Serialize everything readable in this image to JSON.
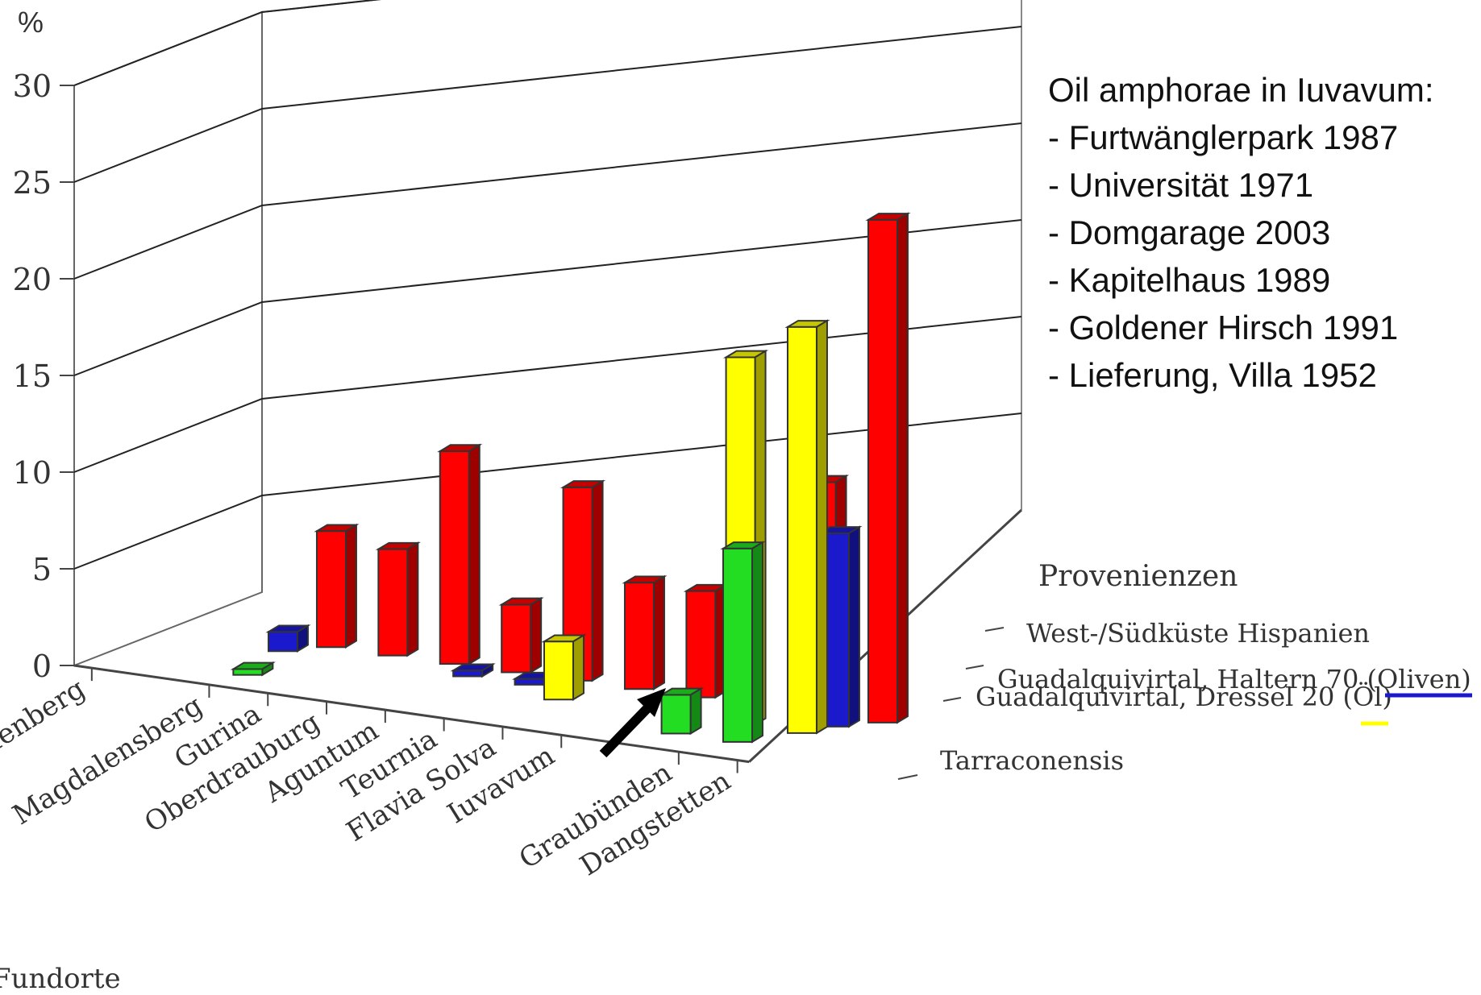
{
  "chart_data": {
    "type": "bar",
    "y_unit_label": "%",
    "xlabel": "Fundorte",
    "series_axis_label": "Provenienzen",
    "ylim": [
      0,
      30
    ],
    "yticks": [
      0,
      5,
      10,
      15,
      20,
      25,
      30
    ],
    "categories": [
      "Magdalensberg",
      "Gurina",
      "Oberdrauburg",
      "Aguntum",
      "Teurnia",
      "Flavia Solva",
      "Iuvavum",
      "Graubünden",
      "Dangstetten"
    ],
    "x_tick_labels": [
      "Lauenberg",
      "Magdalensberg",
      "Gurina",
      "Oberdrauburg",
      "Aguntum",
      "Teurnia",
      "Flavia Solva",
      "Iuvavum",
      "Graubünden",
      "Dangstetten"
    ],
    "series": [
      {
        "name": "West-/Südküste Hispanien",
        "color": "#ff0000",
        "values": [
          6,
          5.5,
          11,
          3.5,
          10,
          5.5,
          5.5,
          12,
          26
        ]
      },
      {
        "name": "Guadalquivirtal, Haltern 70 (Oliven)",
        "color": "#1a1acc",
        "values": [
          1,
          0,
          0,
          0.3,
          0.3,
          0,
          0,
          0,
          10
        ]
      },
      {
        "name": "Guadalquivirtal, Dressel 20 (Öl)",
        "color": "#ffff00",
        "values": [
          0,
          0,
          0,
          0,
          0,
          3,
          0,
          19,
          21
        ]
      },
      {
        "name": "Tarraconensis",
        "color": "#22dd22",
        "values": [
          0,
          0.3,
          0,
          0,
          0,
          0,
          0,
          2,
          10
        ]
      }
    ],
    "legend_position": "right, as depth-axis labels",
    "grid": true
  },
  "notes": {
    "title": "Oil amphorae in Iuvavum:",
    "items": [
      "- Furtwänglerpark 1987",
      "- Universität 1971",
      "- Domgarage 2003",
      "- Kapitelhaus 1989",
      "- Goldener Hirsch 1991",
      "- Lieferung, Villa 1952"
    ]
  },
  "colors": {
    "arrow": "#000000",
    "legend_underline_oliven": "#1a1acc",
    "legend_underline_oel": "#ffff00"
  }
}
